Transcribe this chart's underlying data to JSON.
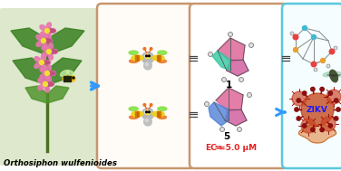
{
  "background_color": "#ffffff",
  "panel1_border": "#c8966e",
  "panel2_border": "#c8966e",
  "panel3_border": "#5bc8dc",
  "species_label": "Orthosiphon wulfenioides",
  "compound1_label": "1",
  "compound5_label": "5",
  "arrow_color": "#3399ff",
  "ec50_color": "#e82020",
  "zikv_color": "#1a1aff",
  "fig_width": 3.76,
  "fig_height": 1.89,
  "dpi": 100
}
